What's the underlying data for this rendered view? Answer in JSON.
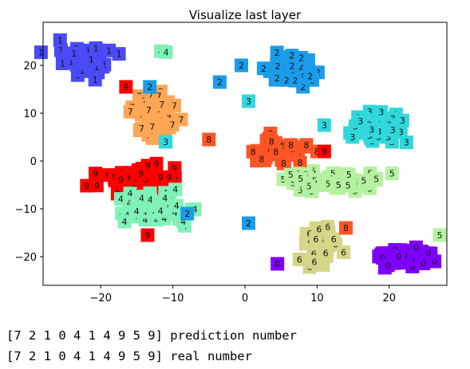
{
  "chart_data": {
    "type": "scatter",
    "title": "Visualize last layer",
    "xlabel": "",
    "ylabel": "",
    "xlim": [
      -28,
      28
    ],
    "ylim": [
      -26,
      29
    ],
    "xticks": [
      -20,
      -10,
      0,
      10,
      20
    ],
    "yticks": [
      -20,
      -10,
      0,
      10,
      20
    ],
    "grid": false,
    "marker": "digit label on colored square",
    "palette": {
      "0": "#8000ff",
      "1": "#4a4af8",
      "2": "#1a9cea",
      "3": "#30d8db",
      "4": "#7ff2b8",
      "5": "#b4f2a0",
      "6": "#d4d688",
      "7": "#ffa656",
      "8": "#ff5526",
      "9": "#ff0000"
    },
    "clusters": [
      {
        "label": "1",
        "cx": -22.5,
        "cy": 21.0,
        "sx": 4.0,
        "sy": 3.4,
        "n": 42
      },
      {
        "label": "4",
        "cx": -11.5,
        "cy": 23.0,
        "sx": 0.5,
        "sy": 0.4,
        "n": 2
      },
      {
        "label": "7",
        "cx": -12.5,
        "cy": 9.5,
        "sx": 3.2,
        "sy": 4.2,
        "n": 38
      },
      {
        "label": "9",
        "cx": -14.5,
        "cy": -3.8,
        "sx": 5.2,
        "sy": 2.4,
        "n": 55
      },
      {
        "label": "4",
        "cx": -12.5,
        "cy": -10.0,
        "sx": 4.8,
        "sy": 3.0,
        "n": 50
      },
      {
        "label": "2",
        "cx": 7.0,
        "cy": 19.0,
        "sx": 3.2,
        "sy": 2.6,
        "n": 40
      },
      {
        "label": "8",
        "cx": 4.5,
        "cy": 2.0,
        "sx": 3.4,
        "sy": 3.0,
        "n": 38
      },
      {
        "label": "3",
        "cx": 17.5,
        "cy": 7.0,
        "sx": 4.2,
        "sy": 2.8,
        "n": 40
      },
      {
        "label": "5",
        "cx": 12.0,
        "cy": -4.5,
        "sx": 6.2,
        "sy": 2.2,
        "n": 55
      },
      {
        "label": "6",
        "cx": 10.5,
        "cy": -18.0,
        "sx": 2.3,
        "sy": 4.0,
        "n": 40
      },
      {
        "label": "0",
        "cx": 21.5,
        "cy": -20.0,
        "sx": 3.8,
        "sy": 1.8,
        "n": 40
      }
    ],
    "outliers": [
      {
        "label": "9",
        "x": -16.5,
        "y": 15.5
      },
      {
        "label": "2",
        "x": -13.2,
        "y": 15.5
      },
      {
        "label": "2",
        "x": -3.5,
        "y": 16.5
      },
      {
        "label": "2",
        "x": -0.5,
        "y": 20.0
      },
      {
        "label": "3",
        "x": 0.5,
        "y": 12.5
      },
      {
        "label": "3",
        "x": -11.0,
        "y": 4.0
      },
      {
        "label": "8",
        "x": -5.0,
        "y": 4.5
      },
      {
        "label": "8",
        "x": 10.0,
        "y": 2.0
      },
      {
        "label": "9",
        "x": 11.0,
        "y": 2.0
      },
      {
        "label": "9",
        "x": -13.5,
        "y": -15.5
      },
      {
        "label": "2",
        "x": -8.0,
        "y": -11.0
      },
      {
        "label": "2",
        "x": 0.5,
        "y": -13.0
      },
      {
        "label": "0",
        "x": 4.5,
        "y": -21.5
      },
      {
        "label": "8",
        "x": 14.0,
        "y": -14.0
      },
      {
        "label": "5",
        "x": 27.0,
        "y": -15.5
      },
      {
        "label": "3",
        "x": 11.0,
        "y": 7.5
      }
    ]
  },
  "console": {
    "line1": "[7 2 1 0 4 1 4 9 5 9] prediction number",
    "line2": "[7 2 1 0 4 1 4 9 5 9] real number"
  }
}
